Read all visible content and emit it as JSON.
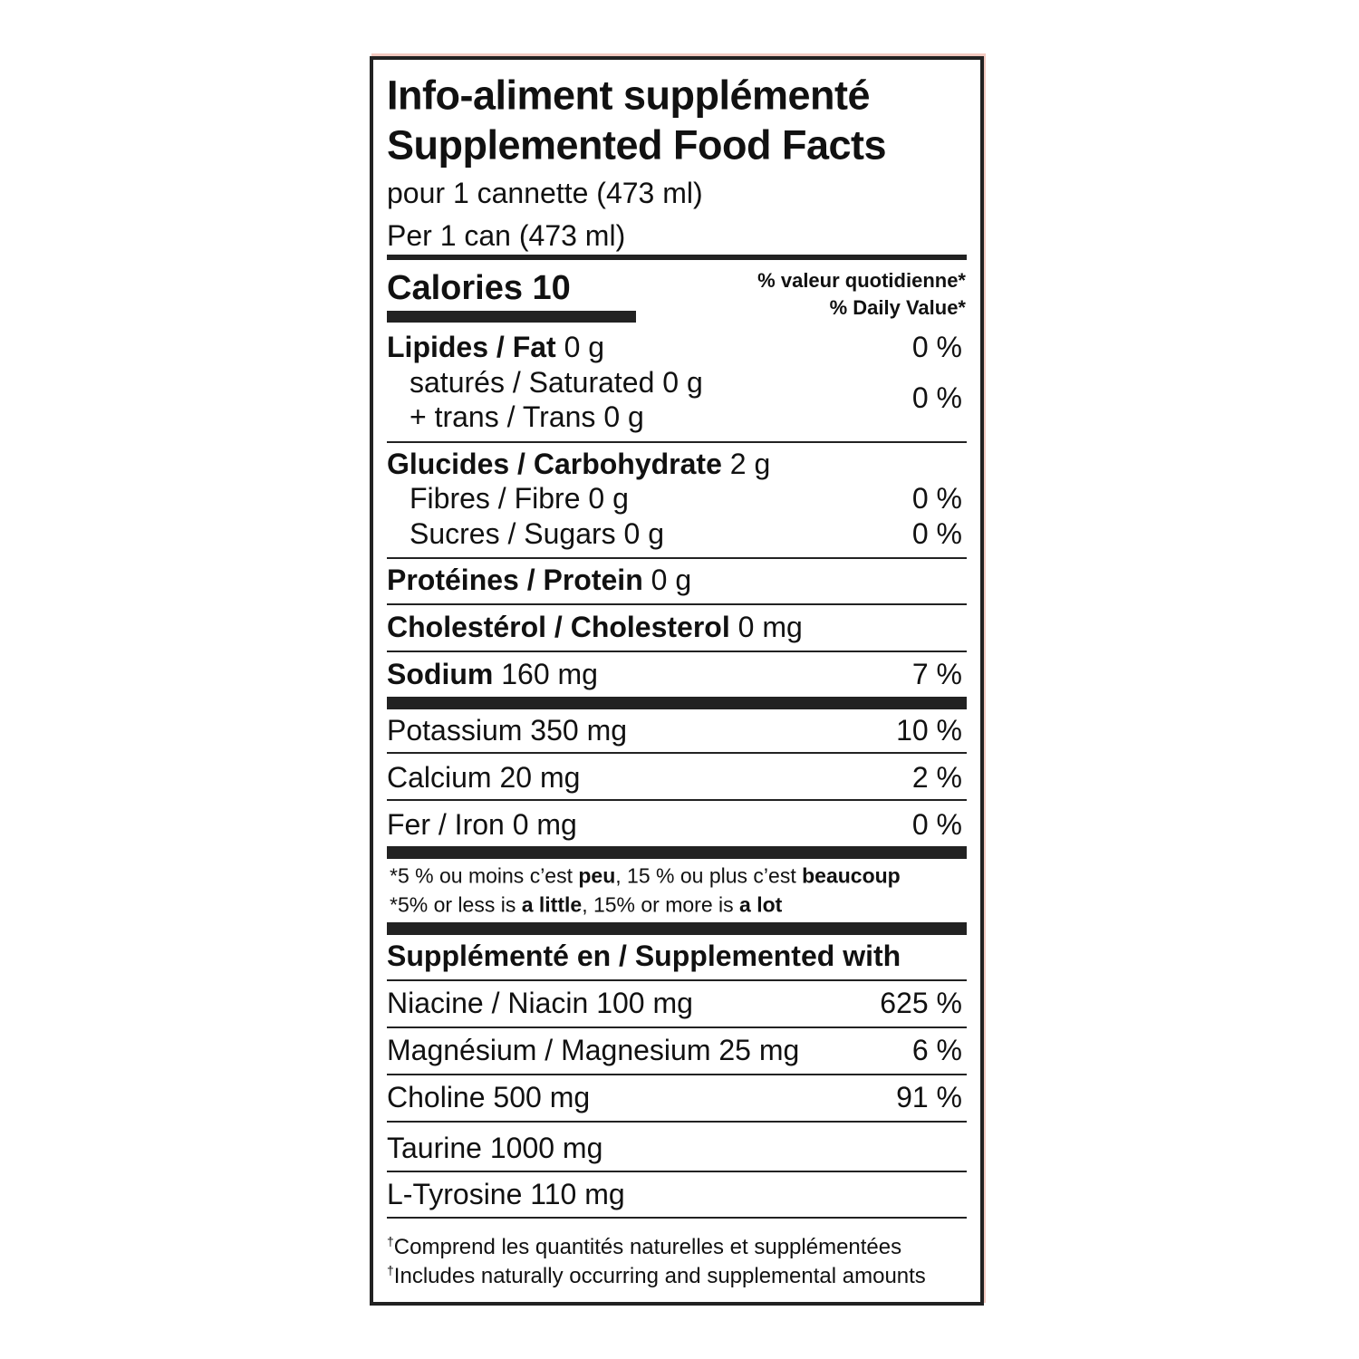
{
  "header": {
    "title_fr": "Info-aliment supplémenté",
    "title_en": "Supplemented Food Facts",
    "serving_fr": "pour 1 cannette (473 ml)",
    "serving_en": "Per 1 can (473 ml)"
  },
  "calories": "Calories 10",
  "daily_value_header": {
    "fr": "% valeur quotidienne*",
    "en": "% Daily Value*"
  },
  "nutrients": {
    "fat": {
      "name": "Lipides / Fat",
      "amount": "0 g",
      "dv": "0 %"
    },
    "saturated": "saturés / Saturated 0 g",
    "trans": "+ trans / Trans 0 g",
    "saturated_trans_dv": "0 %",
    "carbohydrate": {
      "name": "Glucides / Carbohydrate",
      "amount": "2 g"
    },
    "fibre": {
      "label": "Fibres / Fibre 0 g",
      "dv": "0 %"
    },
    "sugars": {
      "label": "Sucres / Sugars 0 g",
      "dv": "0 %"
    },
    "protein": {
      "name": "Protéines / Protein",
      "amount": "0 g"
    },
    "cholesterol": {
      "name": "Cholestérol / Cholesterol",
      "amount": "0 mg"
    },
    "sodium": {
      "name": "Sodium",
      "amount": "160 mg",
      "dv": "7 %"
    }
  },
  "minerals": [
    {
      "label": "Potassium 350 mg",
      "dv": "10 %"
    },
    {
      "label": "Calcium 20 mg",
      "dv": "2 %"
    },
    {
      "label": "Fer / Iron 0 mg",
      "dv": "0 %"
    }
  ],
  "footnote": {
    "fr": [
      "*5 % ou moins c’est ",
      "peu",
      ", 15 % ou plus c’est ",
      "beaucoup"
    ],
    "en": [
      "*5% or less is ",
      "a little",
      ", 15% or more is ",
      "a lot"
    ]
  },
  "supplements": {
    "header": "Supplémenté en / Supplemented with",
    "rows": [
      {
        "label": "Niacine / Niacin 100 mg",
        "dv": "625 %"
      },
      {
        "label": "Magnésium / Magnesium 25 mg",
        "dv": "6 %"
      },
      {
        "label": "Choline 500 mg",
        "dv": "91 %"
      },
      {
        "label": "Taurine 1000 mg"
      },
      {
        "label": "L-Tyrosine 110 mg"
      }
    ]
  },
  "dagger_note": {
    "mark": "†",
    "fr": "Comprend les quantités naturelles et supplémentées",
    "en": "Includes naturally occurring and supplemental amounts"
  }
}
